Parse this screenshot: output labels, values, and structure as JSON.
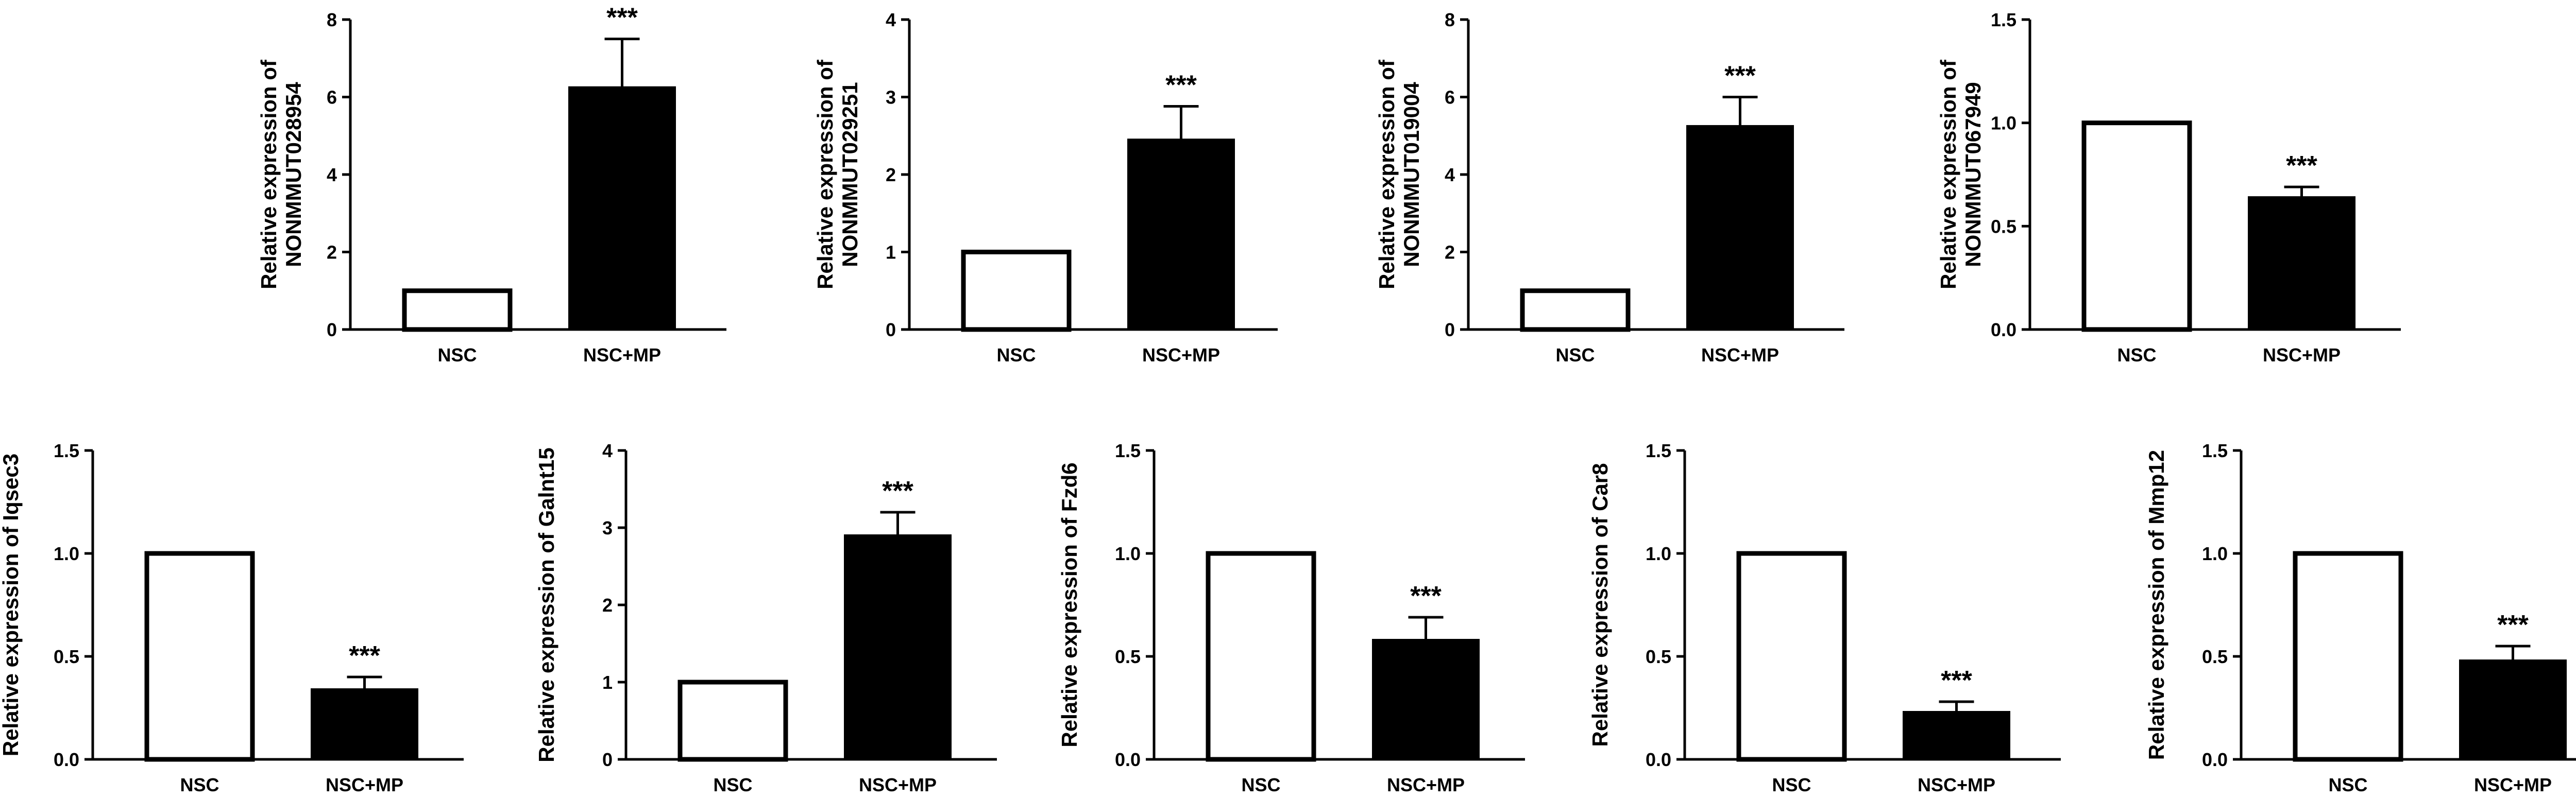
{
  "chart_data": [
    {
      "type": "bar",
      "categories": [
        "NSC",
        "NSC+MP"
      ],
      "values": [
        1,
        6.25
      ],
      "errors": [
        0,
        1.25
      ],
      "significance": [
        "",
        "***"
      ],
      "ylabel": [
        "Relative expression of",
        "NONMMUT028954"
      ],
      "ylim": [
        0,
        8
      ],
      "yticks": [
        0,
        2,
        4,
        6,
        8
      ],
      "ytick_labels": [
        "0",
        "2",
        "4",
        "6",
        "8"
      ],
      "bar_fill": [
        "#ffffff",
        "#000000"
      ]
    },
    {
      "type": "bar",
      "categories": [
        "NSC",
        "NSC+MP"
      ],
      "values": [
        1,
        2.45
      ],
      "errors": [
        0,
        0.43
      ],
      "significance": [
        "",
        "***"
      ],
      "ylabel": [
        "Relative expression of",
        "NONMMUT029251"
      ],
      "ylim": [
        0,
        4
      ],
      "yticks": [
        0,
        1,
        2,
        3,
        4
      ],
      "ytick_labels": [
        "0",
        "1",
        "2",
        "3",
        "4"
      ],
      "bar_fill": [
        "#ffffff",
        "#000000"
      ]
    },
    {
      "type": "bar",
      "categories": [
        "NSC",
        "NSC+MP"
      ],
      "values": [
        1,
        5.25
      ],
      "errors": [
        0,
        0.75
      ],
      "significance": [
        "",
        "***"
      ],
      "ylabel": [
        "Relative expression of",
        "NONMMUT019004"
      ],
      "ylim": [
        0,
        8
      ],
      "yticks": [
        0,
        2,
        4,
        6,
        8
      ],
      "ytick_labels": [
        "0",
        "2",
        "4",
        "6",
        "8"
      ],
      "bar_fill": [
        "#ffffff",
        "#000000"
      ]
    },
    {
      "type": "bar",
      "categories": [
        "NSC",
        "NSC+MP"
      ],
      "values": [
        1.0,
        0.64
      ],
      "errors": [
        0,
        0.05
      ],
      "significance": [
        "",
        "***"
      ],
      "ylabel": [
        "Relative expression of",
        "NONMMUT067949"
      ],
      "ylim": [
        0,
        1.5
      ],
      "yticks": [
        0,
        0.5,
        1.0,
        1.5
      ],
      "ytick_labels": [
        "0.0",
        "0.5",
        "1.0",
        "1.5"
      ],
      "bar_fill": [
        "#ffffff",
        "#000000"
      ]
    },
    {
      "type": "bar",
      "categories": [
        "NSC",
        "NSC+MP"
      ],
      "values": [
        1.0,
        0.34
      ],
      "errors": [
        0,
        0.06
      ],
      "significance": [
        "",
        "***"
      ],
      "ylabel": [
        "Relative expression of Iqsec3"
      ],
      "ylim": [
        0,
        1.5
      ],
      "yticks": [
        0,
        0.5,
        1.0,
        1.5
      ],
      "ytick_labels": [
        "0.0",
        "0.5",
        "1.0",
        "1.5"
      ],
      "bar_fill": [
        "#ffffff",
        "#000000"
      ]
    },
    {
      "type": "bar",
      "categories": [
        "NSC",
        "NSC+MP"
      ],
      "values": [
        1,
        2.9
      ],
      "errors": [
        0,
        0.3
      ],
      "significance": [
        "",
        "***"
      ],
      "ylabel": [
        "Relative expression of Galnt15"
      ],
      "ylim": [
        0,
        4
      ],
      "yticks": [
        0,
        1,
        2,
        3,
        4
      ],
      "ytick_labels": [
        "0",
        "1",
        "2",
        "3",
        "4"
      ],
      "bar_fill": [
        "#ffffff",
        "#000000"
      ]
    },
    {
      "type": "bar",
      "categories": [
        "NSC",
        "NSC+MP"
      ],
      "values": [
        1.0,
        0.58
      ],
      "errors": [
        0,
        0.11
      ],
      "significance": [
        "",
        "***"
      ],
      "ylabel": [
        "Relative expression of Fzd6"
      ],
      "ylim": [
        0,
        1.5
      ],
      "yticks": [
        0,
        0.5,
        1.0,
        1.5
      ],
      "ytick_labels": [
        "0.0",
        "0.5",
        "1.0",
        "1.5"
      ],
      "bar_fill": [
        "#ffffff",
        "#000000"
      ]
    },
    {
      "type": "bar",
      "categories": [
        "NSC",
        "NSC+MP"
      ],
      "values": [
        1.0,
        0.23
      ],
      "errors": [
        0,
        0.05
      ],
      "significance": [
        "",
        "***"
      ],
      "ylabel": [
        "Relative expression of Car8"
      ],
      "ylim": [
        0,
        1.5
      ],
      "yticks": [
        0,
        0.5,
        1.0,
        1.5
      ],
      "ytick_labels": [
        "0.0",
        "0.5",
        "1.0",
        "1.5"
      ],
      "bar_fill": [
        "#ffffff",
        "#000000"
      ]
    },
    {
      "type": "bar",
      "categories": [
        "NSC",
        "NSC+MP"
      ],
      "values": [
        1.0,
        0.48
      ],
      "errors": [
        0,
        0.07
      ],
      "significance": [
        "",
        "***"
      ],
      "ylabel": [
        "Relative expression of Mmp12"
      ],
      "ylim": [
        0,
        1.5
      ],
      "yticks": [
        0,
        0.5,
        1.0,
        1.5
      ],
      "ytick_labels": [
        "0.0",
        "0.5",
        "1.0",
        "1.5"
      ],
      "bar_fill": [
        "#ffffff",
        "#000000"
      ]
    }
  ]
}
